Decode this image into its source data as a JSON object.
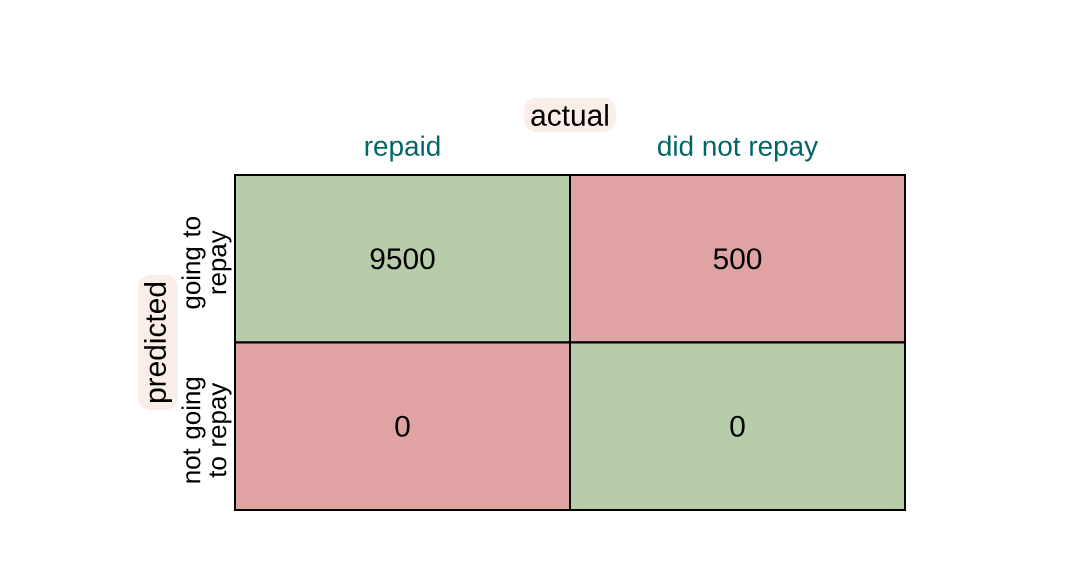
{
  "chart_data": {
    "type": "heatmap",
    "xlabel": "actual",
    "ylabel": "predicted",
    "categories": [
      "repaid",
      "did not repay"
    ],
    "y_categories": [
      "going to repay",
      "not going to repay"
    ],
    "cells": [
      [
        9500,
        500
      ],
      [
        0,
        0
      ]
    ],
    "colors": [
      [
        "#b7cca9",
        "#e0a3a4"
      ],
      [
        "#e0a3a4",
        "#b7cca9"
      ]
    ],
    "data_labels": true
  }
}
